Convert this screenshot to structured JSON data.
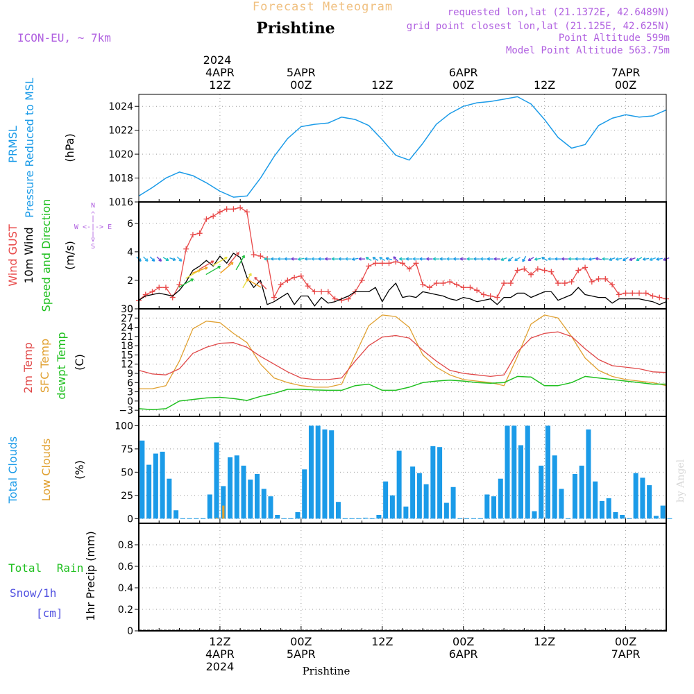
{
  "header": {
    "top_title": "Forecast Meteogram",
    "location": "Prishtine",
    "model": "ICON-EU, ~ 7km",
    "requested": "requested lon,lat (21.1372E, 42.6489N)",
    "grid_point": "grid point closest lon,lat (21.125E, 42.625N)",
    "point_alt": "Point Altitude 599m",
    "model_alt": "Model Point Altitude 563.75m",
    "footer_location": "Prishtine",
    "watermark": "by Angel",
    "top_year": "2024"
  },
  "colors": {
    "pressure": "#1b9be8",
    "gust": "#e84848",
    "wind": "#000000",
    "temp2m": "#e04848",
    "sfc": "#e0a030",
    "dewpt": "#20c020",
    "total_clouds": "#1b9be8",
    "low_clouds": "#e0a030",
    "rain": "#20c020",
    "snow": "#5050e0",
    "meta": "#b060e0",
    "title": "#f0c080"
  },
  "time_axis": {
    "top_labels": [
      {
        "hour": 12,
        "l1": "4APR",
        "l2": "12Z"
      },
      {
        "hour": 24,
        "l1": "5APR",
        "l2": "00Z"
      },
      {
        "hour": 36,
        "l1": "",
        "l2": "12Z"
      },
      {
        "hour": 48,
        "l1": "6APR",
        "l2": "00Z"
      },
      {
        "hour": 60,
        "l1": "",
        "l2": "12Z"
      },
      {
        "hour": 72,
        "l1": "7APR",
        "l2": "00Z"
      }
    ],
    "bottom_labels": [
      {
        "hour": 12,
        "l1": "12Z",
        "l2": "4APR",
        "l3": "2024"
      },
      {
        "hour": 24,
        "l1": "00Z",
        "l2": "5APR",
        "l3": ""
      },
      {
        "hour": 36,
        "l1": "12Z",
        "l2": "",
        "l3": ""
      },
      {
        "hour": 48,
        "l1": "00Z",
        "l2": "6APR",
        "l3": ""
      },
      {
        "hour": 60,
        "l1": "12Z",
        "l2": "",
        "l3": ""
      },
      {
        "hour": 72,
        "l1": "00Z",
        "l2": "7APR",
        "l3": ""
      }
    ]
  },
  "panels": {
    "pressure": {
      "label1": "PRMSL",
      "label2": "Pressure Reduced to MSL",
      "units": "(hPa)",
      "ylim": [
        1016,
        1025
      ],
      "ticks": [
        1016,
        1018,
        1020,
        1022,
        1024
      ]
    },
    "wind": {
      "label_gust": "Wind GUST",
      "label_wind": "10m Wind",
      "label_dir": "Speed and Direction",
      "units": "(m/s)",
      "compass_n": "N",
      "compass_s": "S",
      "compass_w": "W <-|-> E",
      "ylim": [
        0,
        7.5
      ],
      "ticks": [
        0,
        2,
        4,
        6
      ]
    },
    "temp": {
      "label_2m": "2m Temp",
      "label_sfc": "SFC Temp",
      "label_dewpt": "dewpt Temp",
      "units": "(C)",
      "ylim": [
        -5,
        30
      ],
      "ticks": [
        -3,
        0,
        3,
        6,
        9,
        12,
        15,
        18,
        21,
        24,
        27,
        30
      ]
    },
    "clouds": {
      "label_total": "Total Clouds",
      "label_low": "Low Clouds",
      "units": "(%)",
      "ylim": [
        -5,
        110
      ],
      "ticks": [
        0,
        25,
        50,
        75,
        100
      ]
    },
    "precip": {
      "label_rain": "Total Rain",
      "label_snow": "Snow/1h",
      "label_cm": "[cm]",
      "units": "1hr Precip (mm)",
      "ylim": [
        0,
        1
      ],
      "ticks": [
        0,
        0.2,
        0.4,
        0.6,
        0.8
      ],
      "tick_labels": [
        "0",
        "0.2",
        "0.4",
        "0.6",
        "0.8"
      ]
    }
  },
  "chart_data": {
    "type": "line",
    "x_range_hours": [
      0,
      78
    ],
    "x_start": "2024-04-04 00Z",
    "pressure": {
      "name": "PRMSL",
      "x": [
        0,
        2,
        4,
        6,
        8,
        10,
        12,
        14,
        16,
        18,
        20,
        22,
        24,
        26,
        28,
        30,
        32,
        34,
        36,
        38,
        40,
        42,
        44,
        46,
        48,
        50,
        52,
        54,
        56,
        58,
        60,
        62,
        64,
        66,
        68,
        70,
        72,
        74,
        76,
        78
      ],
      "y": [
        1016.5,
        1017.2,
        1018.0,
        1018.5,
        1018.2,
        1017.6,
        1016.9,
        1016.4,
        1016.5,
        1018.0,
        1019.8,
        1021.3,
        1022.3,
        1022.5,
        1022.6,
        1023.1,
        1022.9,
        1022.4,
        1021.2,
        1019.9,
        1019.5,
        1020.9,
        1022.5,
        1023.4,
        1024.0,
        1024.3,
        1024.4,
        1024.6,
        1024.8,
        1024.2,
        1022.9,
        1021.4,
        1020.5,
        1020.8,
        1022.4,
        1023.0,
        1023.3,
        1023.1,
        1023.2,
        1023.7
      ]
    },
    "gust": {
      "name": "Wind GUST",
      "x": [
        0,
        1,
        2,
        3,
        4,
        5,
        6,
        7,
        8,
        9,
        10,
        11,
        12,
        13,
        14,
        15,
        16,
        17,
        18,
        19,
        20,
        21,
        22,
        23,
        24,
        25,
        26,
        27,
        28,
        29,
        30,
        31,
        32,
        33,
        34,
        35,
        36,
        37,
        38,
        39,
        40,
        41,
        42,
        43,
        44,
        45,
        46,
        47,
        48,
        49,
        50,
        51,
        52,
        53,
        54,
        55,
        56,
        57,
        58,
        59,
        60,
        61,
        62,
        63,
        64,
        65,
        66,
        67,
        68,
        69,
        70,
        71,
        72,
        73,
        74,
        75,
        76,
        77,
        78
      ],
      "y": [
        0.6,
        1.0,
        1.2,
        1.5,
        1.5,
        0.8,
        1.7,
        4.2,
        5.2,
        5.3,
        6.3,
        6.5,
        6.8,
        7.0,
        7.0,
        7.1,
        6.8,
        3.8,
        3.7,
        3.5,
        0.8,
        1.7,
        2.0,
        2.2,
        2.3,
        1.6,
        1.2,
        1.2,
        1.2,
        0.7,
        0.6,
        0.7,
        1.2,
        2.0,
        3.0,
        3.2,
        3.2,
        3.2,
        3.3,
        3.2,
        2.8,
        3.2,
        1.7,
        1.5,
        1.8,
        1.8,
        1.9,
        1.7,
        1.5,
        1.5,
        1.3,
        1.0,
        0.9,
        0.8,
        1.8,
        1.8,
        2.7,
        2.8,
        2.4,
        2.8,
        2.7,
        2.6,
        1.8,
        1.8,
        1.9,
        2.7,
        2.9,
        1.9,
        2.1,
        2.1,
        1.7,
        1.0,
        1.1,
        1.1,
        1.1,
        1.1,
        0.9,
        0.8,
        0.7
      ]
    },
    "wind10m": {
      "name": "10m Wind",
      "x": [
        0,
        1,
        2,
        3,
        4,
        5,
        6,
        7,
        8,
        9,
        10,
        11,
        12,
        13,
        14,
        15,
        16,
        17,
        18,
        19,
        20,
        21,
        22,
        23,
        24,
        25,
        26,
        27,
        28,
        29,
        30,
        31,
        32,
        33,
        34,
        35,
        36,
        37,
        38,
        39,
        40,
        41,
        42,
        43,
        44,
        45,
        46,
        47,
        48,
        49,
        50,
        51,
        52,
        53,
        54,
        55,
        56,
        57,
        58,
        59,
        60,
        61,
        62,
        63,
        64,
        65,
        66,
        67,
        68,
        69,
        70,
        71,
        72,
        73,
        74,
        75,
        76,
        77,
        78
      ],
      "y": [
        0.6,
        0.9,
        1.0,
        1.1,
        1.0,
        0.9,
        1.3,
        1.9,
        2.7,
        3.0,
        3.4,
        3.0,
        3.7,
        3.2,
        3.9,
        3.6,
        2.2,
        1.5,
        2.0,
        0.3,
        0.5,
        0.8,
        1.1,
        0.3,
        0.9,
        0.9,
        0.2,
        0.8,
        0.4,
        0.5,
        0.7,
        0.9,
        1.2,
        1.2,
        1.2,
        1.5,
        0.5,
        1.3,
        1.8,
        0.8,
        0.9,
        0.8,
        1.2,
        1.1,
        1.0,
        0.9,
        0.7,
        0.6,
        0.8,
        0.7,
        0.5,
        0.6,
        0.7,
        0.3,
        0.8,
        0.8,
        1.1,
        1.1,
        0.8,
        1.0,
        1.2,
        1.2,
        0.6,
        0.8,
        1.0,
        1.5,
        1.0,
        0.9,
        0.8,
        0.8,
        0.4,
        0.7,
        0.7,
        0.7,
        0.7,
        0.6,
        0.5,
        0.3,
        0.5
      ]
    },
    "temp2m": {
      "name": "2m Temp",
      "x": [
        0,
        2,
        4,
        6,
        8,
        10,
        12,
        14,
        16,
        18,
        20,
        22,
        24,
        26,
        28,
        30,
        32,
        34,
        36,
        38,
        40,
        42,
        44,
        46,
        48,
        50,
        52,
        54,
        56,
        58,
        60,
        62,
        64,
        66,
        68,
        70,
        72,
        74,
        76,
        78
      ],
      "y": [
        10.0,
        8.8,
        8.5,
        10.5,
        15.5,
        17.5,
        18.8,
        19.0,
        17.5,
        14.5,
        12.0,
        9.5,
        7.5,
        7.0,
        7.0,
        7.5,
        13.0,
        18.0,
        20.8,
        21.3,
        20.5,
        16.5,
        13.0,
        10.0,
        9.0,
        8.5,
        8.0,
        8.5,
        16.0,
        20.5,
        22.0,
        22.5,
        21.0,
        17.0,
        13.5,
        11.5,
        11.0,
        10.5,
        9.5,
        9.3
      ]
    },
    "sfc_temp": {
      "name": "SFC Temp",
      "x": [
        0,
        2,
        4,
        6,
        8,
        10,
        12,
        14,
        16,
        18,
        20,
        22,
        24,
        26,
        28,
        30,
        32,
        34,
        36,
        38,
        40,
        42,
        44,
        46,
        48,
        50,
        52,
        54,
        56,
        58,
        60,
        62,
        64,
        66,
        68,
        70,
        72,
        74,
        76,
        78
      ],
      "y": [
        4.0,
        4.0,
        5.0,
        13.0,
        23.5,
        26.0,
        25.5,
        22.0,
        19.0,
        12.0,
        7.5,
        6.0,
        5.0,
        4.5,
        4.5,
        5.5,
        15.0,
        24.5,
        28.0,
        27.5,
        24.0,
        15.0,
        11.0,
        8.5,
        7.0,
        6.5,
        6.0,
        5.0,
        14.5,
        25.0,
        28.0,
        27.0,
        21.0,
        14.0,
        10.0,
        8.0,
        7.0,
        6.5,
        6.0,
        5.0
      ]
    },
    "dewpt": {
      "name": "dewpt Temp",
      "x": [
        0,
        2,
        4,
        6,
        8,
        10,
        12,
        14,
        16,
        18,
        20,
        22,
        24,
        26,
        28,
        30,
        32,
        34,
        36,
        38,
        40,
        42,
        44,
        46,
        48,
        50,
        52,
        54,
        56,
        58,
        60,
        62,
        64,
        66,
        68,
        70,
        72,
        74,
        76,
        78
      ],
      "y": [
        -2.5,
        -2.8,
        -2.5,
        0.0,
        0.5,
        1.0,
        1.2,
        0.8,
        0.2,
        1.5,
        2.5,
        3.8,
        3.8,
        3.6,
        3.5,
        3.5,
        5.0,
        5.5,
        3.5,
        3.5,
        4.5,
        6.0,
        6.5,
        6.8,
        6.5,
        6.0,
        5.8,
        6.0,
        8.0,
        7.8,
        5.0,
        5.0,
        6.0,
        8.0,
        7.5,
        7.0,
        6.5,
        6.0,
        5.5,
        5.5
      ]
    },
    "clouds_total": {
      "name": "Total Clouds",
      "x": [
        0,
        1,
        2,
        3,
        4,
        5,
        6,
        7,
        8,
        9,
        10,
        11,
        12,
        13,
        14,
        15,
        16,
        17,
        18,
        19,
        20,
        21,
        22,
        23,
        24,
        25,
        26,
        27,
        28,
        29,
        30,
        31,
        32,
        33,
        34,
        35,
        36,
        37,
        38,
        39,
        40,
        41,
        42,
        43,
        44,
        45,
        46,
        47,
        48,
        49,
        50,
        51,
        52,
        53,
        54,
        55,
        56,
        57,
        58,
        59,
        60,
        61,
        62,
        63,
        64,
        65,
        66,
        67,
        68,
        69,
        70,
        71,
        72,
        73,
        74,
        75,
        76,
        77,
        78
      ],
      "y": [
        84,
        58,
        70,
        72,
        43,
        9,
        0,
        0,
        0,
        0,
        26,
        82,
        35,
        66,
        68,
        57,
        42,
        48,
        32,
        24,
        4,
        0,
        0,
        7,
        53,
        100,
        100,
        96,
        95,
        18,
        0,
        0,
        0,
        1,
        0,
        4,
        40,
        25,
        73,
        13,
        56,
        49,
        37,
        78,
        77,
        17,
        34,
        0,
        0,
        0,
        0,
        26,
        24,
        43,
        100,
        100,
        79,
        100,
        8,
        57,
        100,
        68,
        32,
        0,
        48,
        57,
        96,
        40,
        19,
        22,
        7,
        4,
        0,
        49,
        44,
        36,
        3,
        14,
        0
      ]
    },
    "clouds_low": {
      "name": "Low Clouds",
      "x": [
        11,
        12
      ],
      "y": [
        1,
        14
      ]
    },
    "precip_rain": {
      "name": "Total Rain",
      "x": [
        0,
        78
      ],
      "y": [
        0,
        0
      ]
    },
    "wind_dir_deg": {
      "x": [
        0,
        1,
        2,
        3,
        4,
        5,
        6,
        7,
        8,
        9,
        10,
        11,
        12,
        13,
        14,
        15,
        16,
        17,
        18,
        19,
        20,
        21,
        22,
        23,
        24,
        25,
        26,
        27,
        28,
        29,
        30,
        31,
        32,
        33,
        34,
        35,
        36,
        37,
        38,
        39,
        40,
        41,
        42,
        43,
        44,
        45,
        46,
        47,
        48,
        49,
        50,
        51,
        52,
        53,
        54,
        55,
        56,
        57,
        58,
        59,
        60,
        61,
        62,
        63,
        64,
        65,
        66,
        67,
        68,
        69,
        70,
        71,
        72,
        73,
        74,
        75,
        76,
        77,
        78
      ],
      "y": [
        225,
        225,
        225,
        225,
        240,
        250,
        225,
        300,
        300,
        290,
        300,
        300,
        300,
        310,
        320,
        330,
        330,
        60,
        45,
        90,
        90,
        90,
        90,
        90,
        100,
        90,
        90,
        90,
        90,
        90,
        90,
        90,
        100,
        90,
        60,
        60,
        60,
        75,
        45,
        90,
        90,
        90,
        90,
        90,
        90,
        90,
        90,
        90,
        90,
        90,
        90,
        90,
        90,
        90,
        110,
        130,
        120,
        150,
        120,
        100,
        60,
        90,
        90,
        90,
        90,
        90,
        90,
        100,
        80,
        90,
        110,
        100,
        120,
        110,
        120,
        100,
        110,
        100,
        110
      ]
    }
  }
}
